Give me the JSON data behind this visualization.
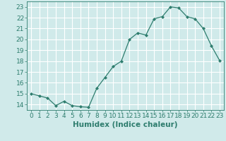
{
  "x": [
    0,
    1,
    2,
    3,
    4,
    5,
    6,
    7,
    8,
    9,
    10,
    11,
    12,
    13,
    14,
    15,
    16,
    17,
    18,
    19,
    20,
    21,
    22,
    23
  ],
  "y": [
    15.0,
    14.8,
    14.6,
    13.9,
    14.3,
    13.9,
    13.8,
    13.75,
    15.5,
    16.5,
    17.5,
    18.0,
    20.0,
    20.6,
    20.4,
    21.9,
    22.1,
    23.0,
    22.9,
    22.1,
    21.9,
    21.0,
    19.4,
    18.05
  ],
  "line_color": "#2e7d6e",
  "marker": "D",
  "marker_size": 2,
  "xlabel": "Humidex (Indice chaleur)",
  "xlim": [
    -0.5,
    23.5
  ],
  "ylim": [
    13.5,
    23.5
  ],
  "yticks": [
    14,
    15,
    16,
    17,
    18,
    19,
    20,
    21,
    22,
    23
  ],
  "xticks": [
    0,
    1,
    2,
    3,
    4,
    5,
    6,
    7,
    8,
    9,
    10,
    11,
    12,
    13,
    14,
    15,
    16,
    17,
    18,
    19,
    20,
    21,
    22,
    23
  ],
  "bg_color": "#d0eaea",
  "grid_color": "#b8d8d8",
  "font_color": "#2e7d6e",
  "xlabel_fontsize": 7.5,
  "tick_fontsize": 6.5
}
